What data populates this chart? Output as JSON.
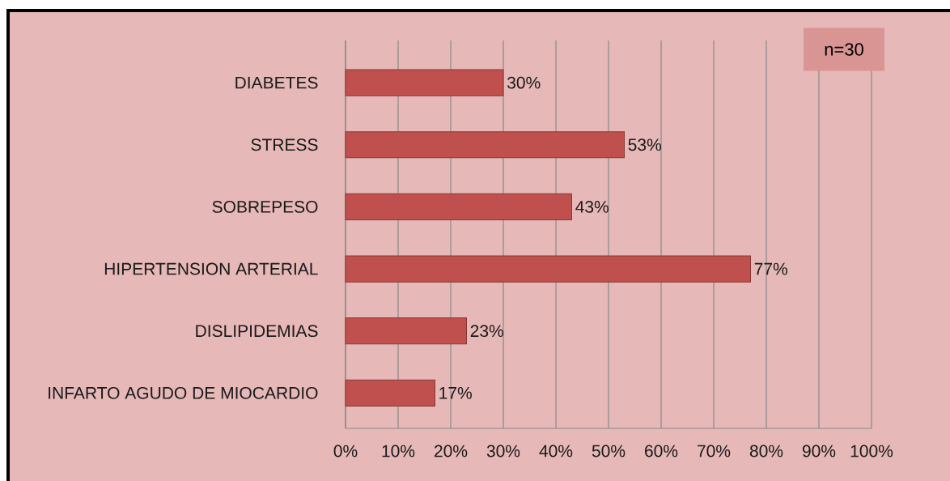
{
  "chart_data": {
    "type": "bar",
    "orientation": "horizontal",
    "categories": [
      "DIABETES",
      "STRESS",
      "SOBREPESO",
      "HIPERTENSION ARTERIAL",
      "DISLIPIDEMIAS",
      "INFARTO AGUDO DE MIOCARDIO"
    ],
    "values": [
      30,
      53,
      43,
      77,
      23,
      17
    ],
    "value_labels": [
      "30%",
      "53%",
      "43%",
      "77%",
      "23%",
      "17%"
    ],
    "color": "#c0504d",
    "xlim": [
      0,
      100
    ],
    "xticks": [
      {
        "value": 0,
        "label": "0%"
      },
      {
        "value": 10,
        "label": "10%"
      },
      {
        "value": 20,
        "label": "20%"
      },
      {
        "value": 30,
        "label": "30%"
      },
      {
        "value": 40,
        "label": "40%"
      },
      {
        "value": 50,
        "label": "50%"
      },
      {
        "value": 60,
        "label": "60%"
      },
      {
        "value": 70,
        "label": "70%"
      },
      {
        "value": 80,
        "label": "80%"
      },
      {
        "value": 90,
        "label": "90%"
      },
      {
        "value": 100,
        "label": "100%"
      }
    ],
    "grid": "x",
    "annotations": [
      "n=30"
    ]
  }
}
